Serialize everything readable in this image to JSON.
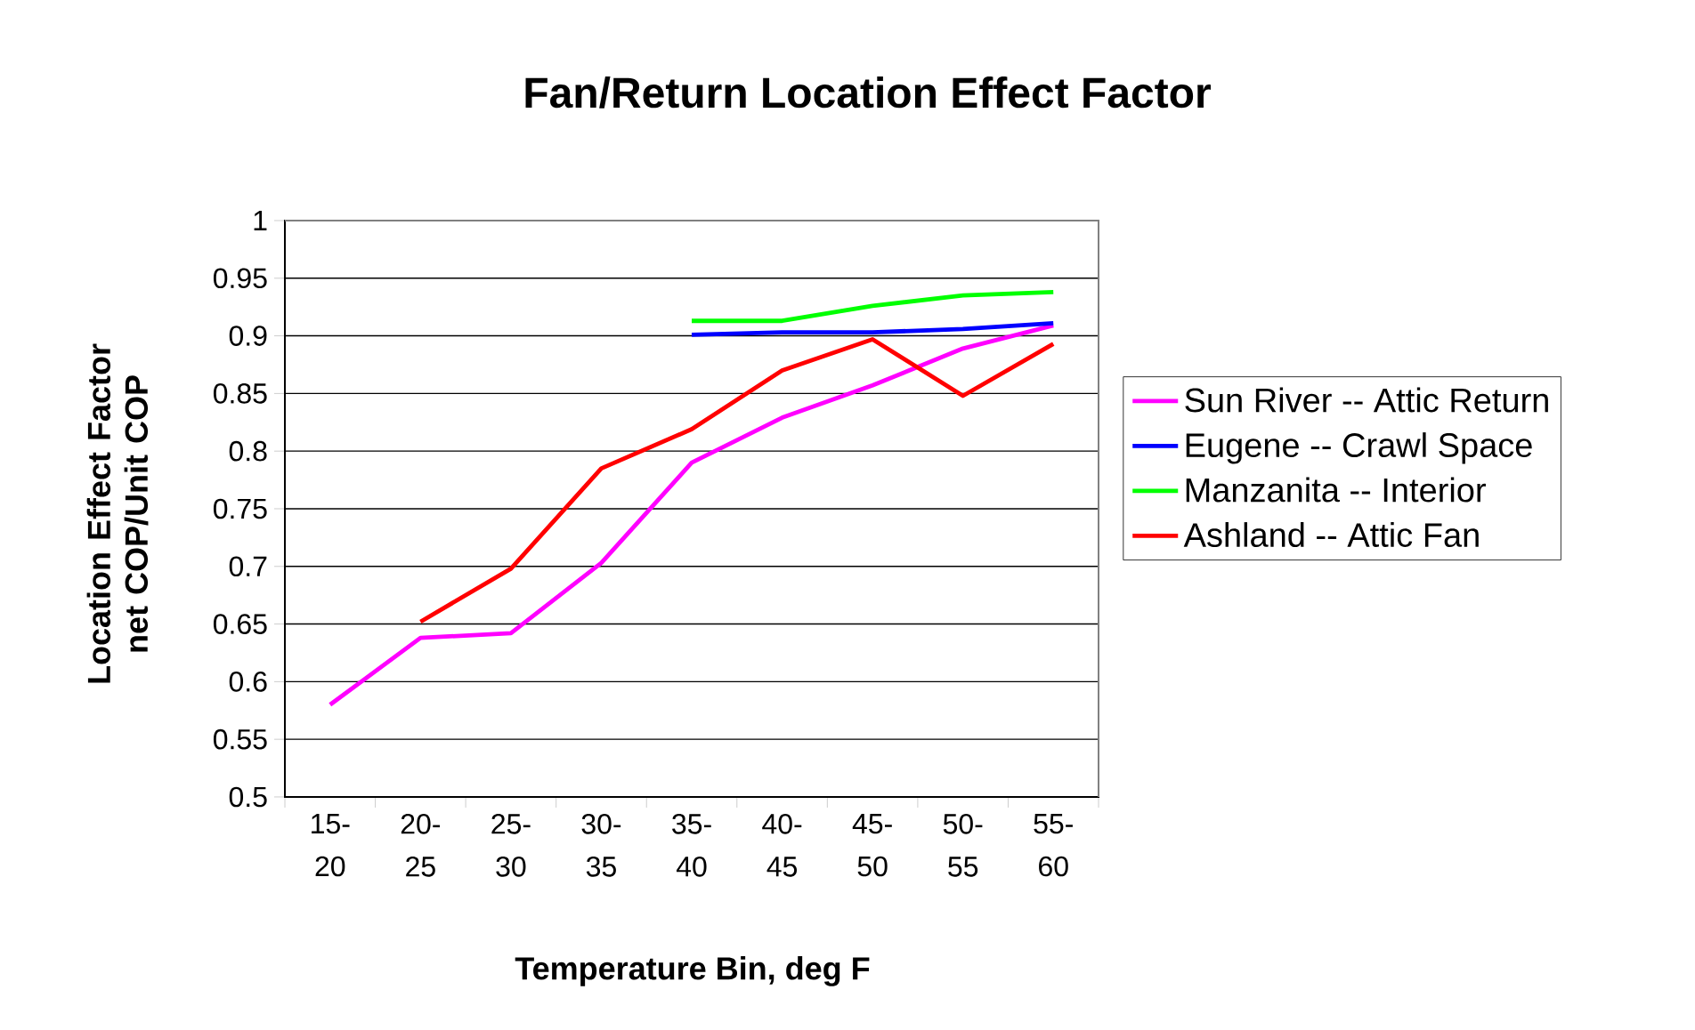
{
  "chart_data": {
    "type": "line",
    "title": "Fan/Return Location Effect Factor",
    "xlabel": "Temperature Bin, deg F",
    "ylabel": "Location Effect Factor net COP/Unit COP",
    "categories": [
      "15-20",
      "20-25",
      "25-30",
      "30-35",
      "35-40",
      "40-45",
      "45-50",
      "50-55",
      "55-60"
    ],
    "series": [
      {
        "name": "Sun River -- Attic Return",
        "color": "#ff00ff",
        "values": [
          0.58,
          0.638,
          0.642,
          0.703,
          0.79,
          0.829,
          0.857,
          0.889,
          0.909
        ]
      },
      {
        "name": "Eugene -- Crawl Space",
        "color": "#0000ff",
        "values": [
          null,
          null,
          null,
          null,
          0.901,
          0.903,
          0.903,
          0.906,
          0.911
        ]
      },
      {
        "name": "Manzanita -- Interior",
        "color": "#00ff00",
        "values": [
          null,
          null,
          null,
          null,
          0.913,
          0.913,
          0.926,
          0.935,
          0.938
        ]
      },
      {
        "name": "Ashland -- Attic Fan",
        "color": "#ff0000",
        "values": [
          null,
          0.652,
          0.698,
          0.785,
          0.819,
          0.87,
          0.897,
          0.848,
          0.893
        ]
      }
    ],
    "ylim": [
      0.5,
      1
    ],
    "yticks": [
      0.5,
      0.55,
      0.6,
      0.65,
      0.7,
      0.75,
      0.8,
      0.85,
      0.9,
      0.95,
      1
    ],
    "grid": "y",
    "legend": "right",
    "marker": "none",
    "line_style": "solid"
  }
}
